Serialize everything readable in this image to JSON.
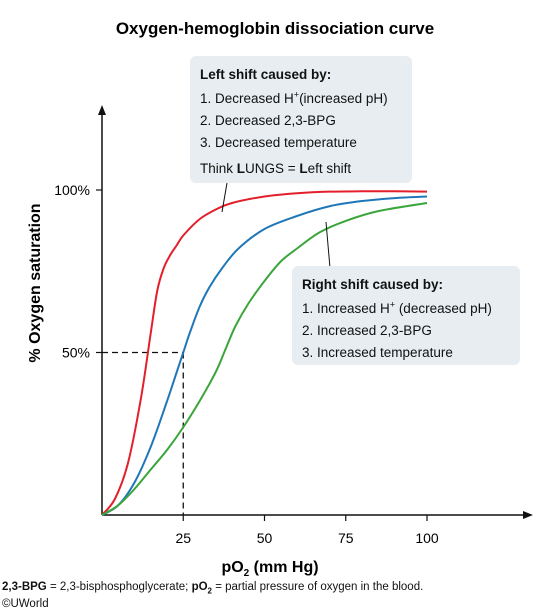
{
  "chart_data": {
    "type": "line",
    "title": "Oxygen-hemoglobin dissociation curve",
    "xlabel_main": "pO",
    "xlabel_sub": "2",
    "xlabel_rest": " (mm Hg)",
    "ylabel": "% Oxygen saturation",
    "xlim": [
      0,
      100
    ],
    "ylim": [
      0,
      100
    ],
    "xticks": [
      {
        "value": 25,
        "label": "25"
      },
      {
        "value": 50,
        "label": "50"
      },
      {
        "value": 75,
        "label": "75"
      },
      {
        "value": 100,
        "label": "100"
      }
    ],
    "yticks": [
      {
        "value": 50,
        "label": "50%"
      },
      {
        "value": 100,
        "label": "100%"
      }
    ],
    "reference_point": {
      "x": 25,
      "y": 50
    },
    "series": [
      {
        "key": "left",
        "color": "#e21f2b",
        "x": [
          0,
          4,
          8,
          12,
          15,
          17,
          19,
          21,
          23,
          25,
          30,
          35,
          40,
          50,
          60,
          70,
          80,
          90,
          100
        ],
        "y": [
          0,
          5,
          16,
          36,
          56,
          69,
          76,
          80,
          83,
          86,
          91,
          94,
          96,
          98,
          99,
          99.5,
          99.6,
          99.6,
          99.5
        ]
      },
      {
        "key": "normal",
        "color": "#1f77b8",
        "x": [
          0,
          5,
          10,
          15,
          20,
          23,
          25,
          27,
          30,
          33,
          37,
          42,
          50,
          60,
          70,
          80,
          90,
          100
        ],
        "y": [
          0,
          3,
          10,
          21,
          35,
          44,
          50,
          56,
          64,
          70,
          76,
          82,
          88,
          92,
          95,
          96.6,
          97.5,
          98
        ]
      },
      {
        "key": "right",
        "color": "#3aa53b",
        "x": [
          0,
          5,
          10,
          15,
          20,
          25,
          30,
          35,
          38,
          41,
          45,
          50,
          55,
          60,
          67,
          75,
          85,
          100
        ],
        "y": [
          0,
          3,
          8,
          14,
          20,
          27,
          35,
          44,
          51,
          58,
          65,
          72,
          78,
          82,
          87,
          90.5,
          93.5,
          96
        ]
      }
    ]
  },
  "left_box": {
    "heading": "Left shift caused by:",
    "item1_text": "1. Decreased H",
    "item1_sup": "+",
    "item1_rest": "(increased pH)",
    "item2": "2. Decreased 2,3-BPG",
    "item3": "3. Decreased temperature",
    "mnemonic_pre": "Think ",
    "mnemonic_bold1": "L",
    "mnemonic_mid": "UNGS = ",
    "mnemonic_bold2": "L",
    "mnemonic_post": "eft shift"
  },
  "right_box": {
    "heading": "Right shift caused by:",
    "item1_text": "1. Increased H",
    "item1_sup": "+",
    "item1_rest": " (decreased pH)",
    "item2": "2. Increased 2,3-BPG",
    "item3": "3. Increased temperature"
  },
  "footnote": {
    "term1": "2,3-BPG",
    "def1": " = 2,3-bisphosphoglycerate; ",
    "term2_main": "pO",
    "term2_sub": "2",
    "def2": " = partial pressure of oxygen in the blood.",
    "copyright": "©UWorld"
  },
  "colors": {
    "axis": "#111111",
    "box": "#e7edf1",
    "red": "#e21f2b",
    "blue": "#1f77b8",
    "green": "#3aa53b"
  }
}
